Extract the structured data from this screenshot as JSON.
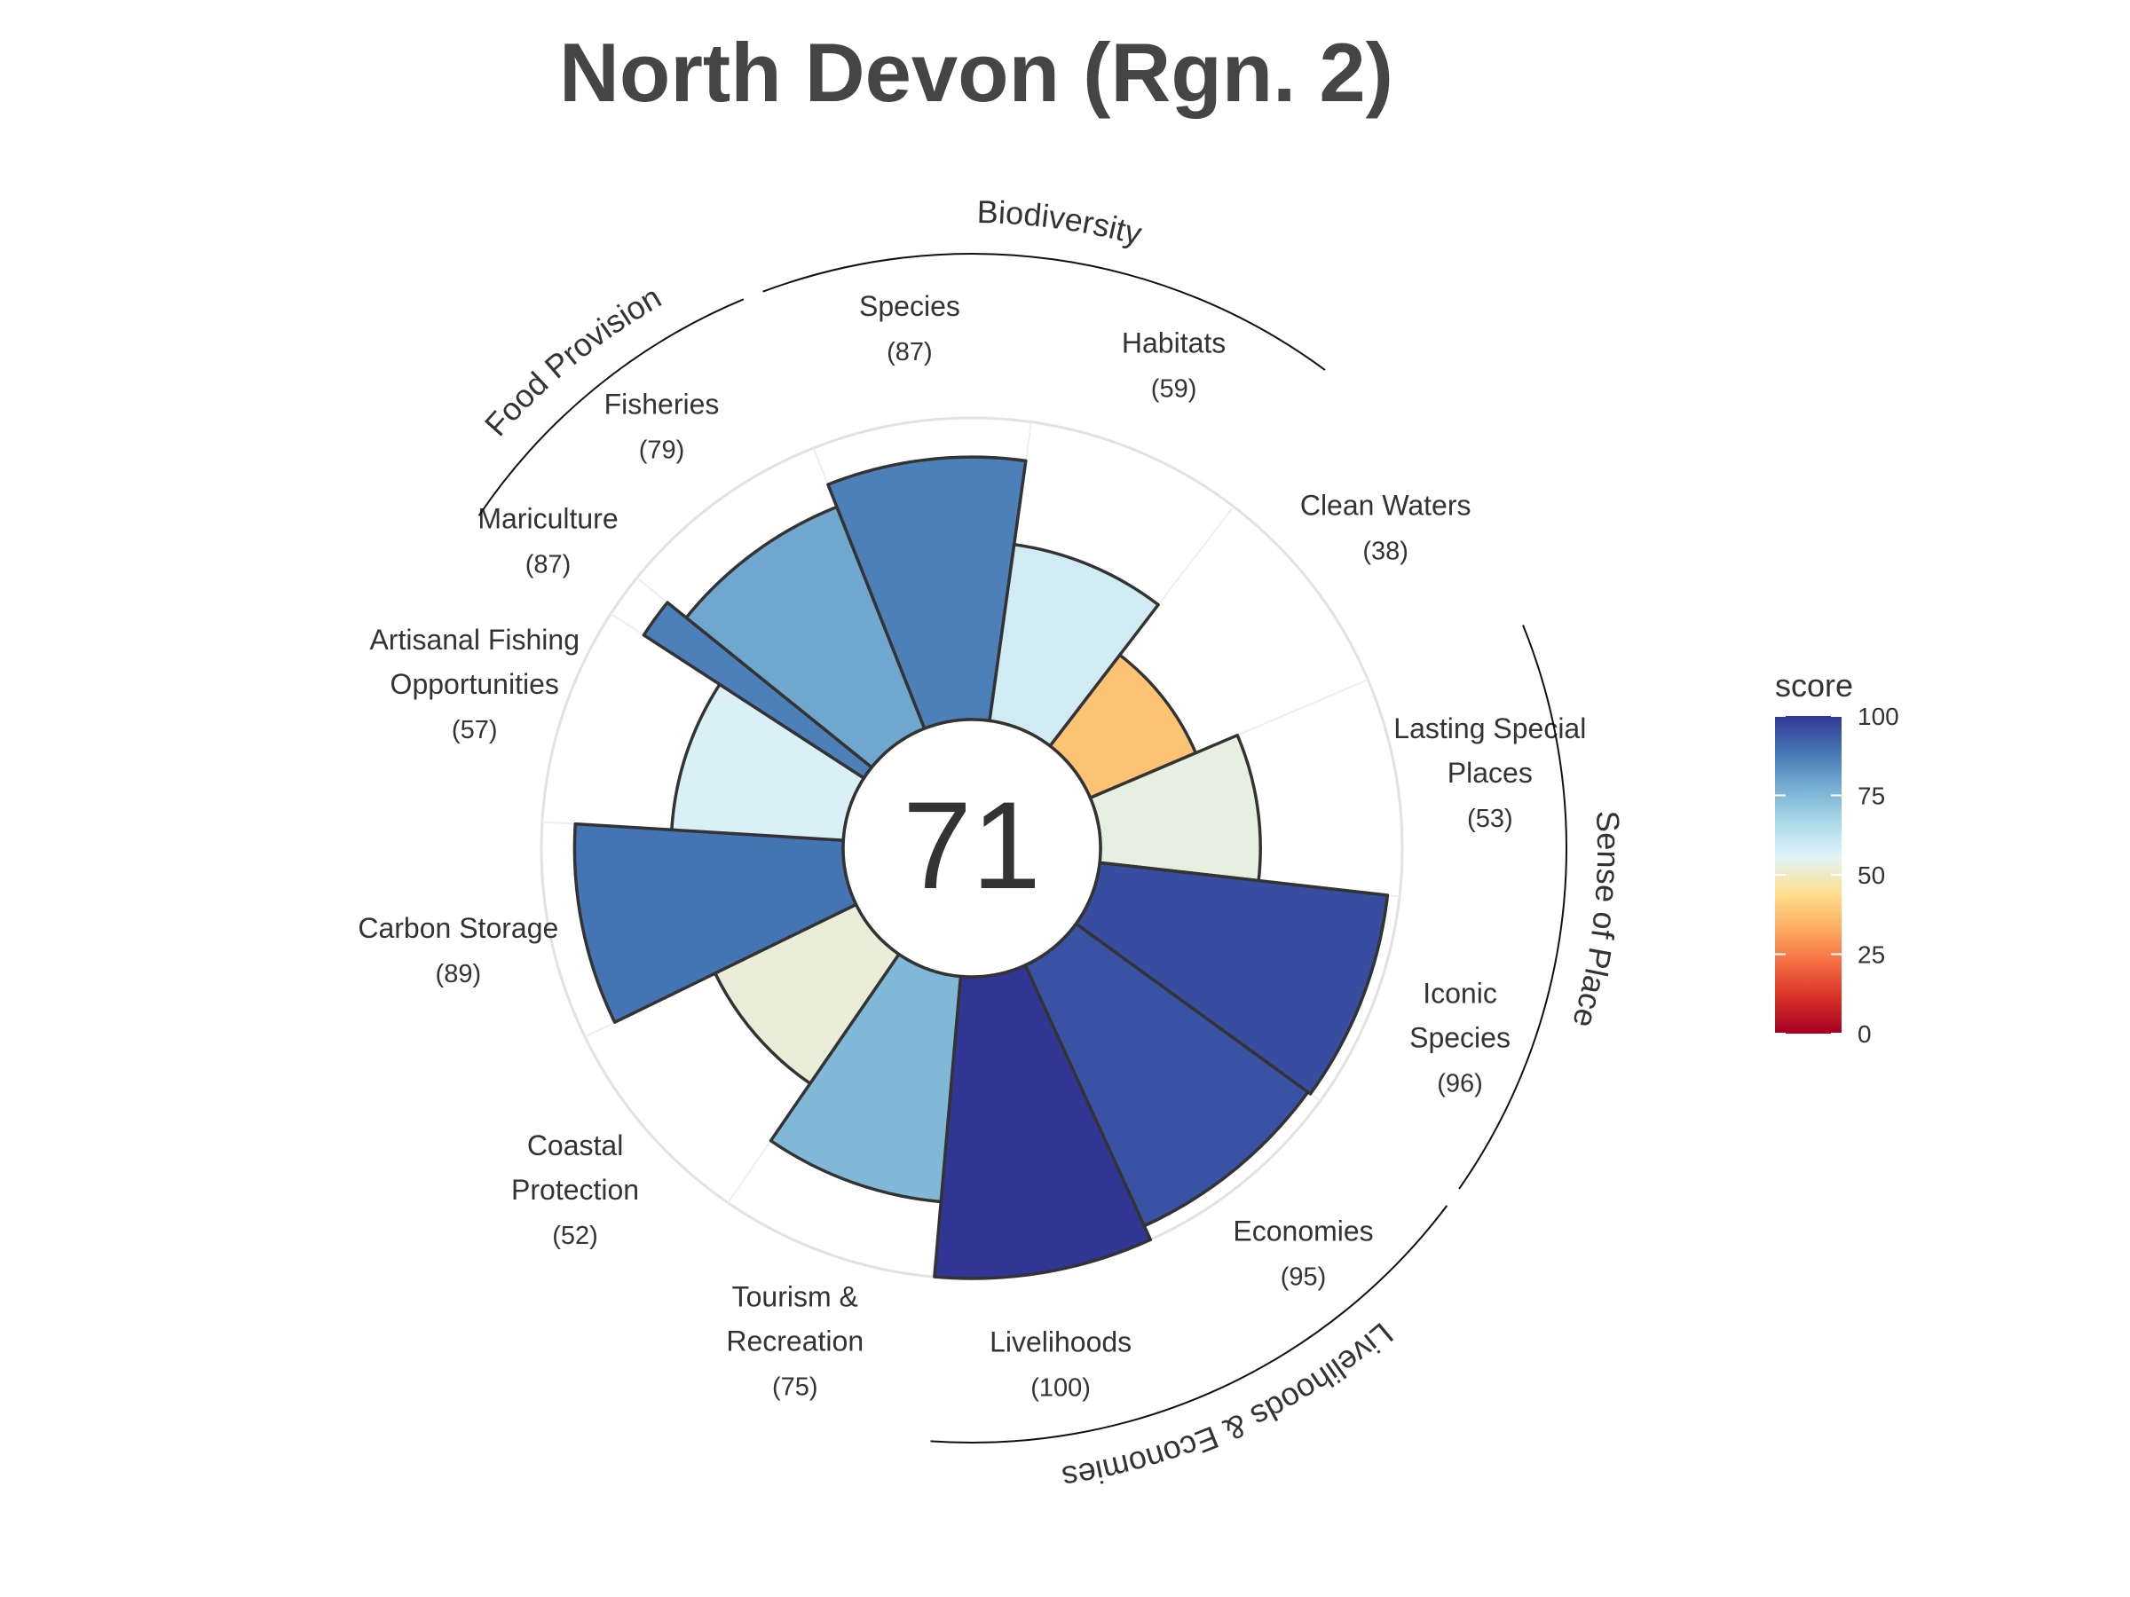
{
  "chart_data": {
    "type": "bar",
    "subtype": "flower (polar bar)",
    "title": "North Devon (Rgn. 2)",
    "overall_score": "71",
    "rlim": [
      0,
      100
    ],
    "grid": true,
    "categories": [
      "Carbon Storage",
      "Artisanal Fishing Opportunities",
      "Mariculture",
      "Fisheries",
      "Species",
      "Habitats",
      "Clean Waters",
      "Lasting Special Places",
      "Iconic Species",
      "Economies",
      "Livelihoods",
      "Tourism & Recreation",
      "Coastal Protection"
    ],
    "values": [
      89,
      57,
      87,
      79,
      87,
      59,
      38,
      53,
      96,
      95,
      100,
      75,
      52
    ],
    "goals": [
      {
        "label": [
          "Carbon Storage"
        ],
        "score_text": "(89)"
      },
      {
        "label": [
          "Artisanal Fishing",
          "Opportunities"
        ],
        "score_text": "(57)"
      },
      {
        "label": [
          "Mariculture"
        ],
        "score_text": "(87)"
      },
      {
        "label": [
          "Fisheries"
        ],
        "score_text": "(79)"
      },
      {
        "label": [
          "Species"
        ],
        "score_text": "(87)"
      },
      {
        "label": [
          "Habitats"
        ],
        "score_text": "(59)"
      },
      {
        "label": [
          "Clean Waters"
        ],
        "score_text": "(38)"
      },
      {
        "label": [
          "Lasting Special",
          "Places"
        ],
        "score_text": "(53)"
      },
      {
        "label": [
          "Iconic",
          "Species"
        ],
        "score_text": "(96)"
      },
      {
        "label": [
          "Economies"
        ],
        "score_text": "(95)"
      },
      {
        "label": [
          "Livelihoods"
        ],
        "score_text": "(100)"
      },
      {
        "label": [
          "Tourism &",
          "Recreation"
        ],
        "score_text": "(75)"
      },
      {
        "label": [
          "Coastal",
          "Protection"
        ],
        "score_text": "(52)"
      }
    ],
    "supra_groups": [
      {
        "name": "Food Provision",
        "goals": [
          "Mariculture",
          "Fisheries"
        ]
      },
      {
        "name": "Biodiversity",
        "goals": [
          "Species",
          "Habitats"
        ]
      },
      {
        "name": "Sense of Place",
        "goals": [
          "Iconic Species",
          "Lasting Special Places"
        ]
      },
      {
        "name": "Livelihoods & Economies",
        "goals": [
          "Livelihoods",
          "Economies"
        ]
      }
    ],
    "legend": {
      "title": "score",
      "placement": "right",
      "ticks": [
        "100",
        "75",
        "50",
        "25",
        "0"
      ],
      "tick_values": [
        100,
        75,
        50,
        25,
        0
      ]
    },
    "colorscale": [
      "#a50026",
      "#d73027",
      "#f46d43",
      "#fdae61",
      "#fee090",
      "#e0f3f8",
      "#abd9e9",
      "#74add1",
      "#4575b4",
      "#313695"
    ],
    "colors": {
      "outline": "#333333",
      "grid": "#e2e2e2",
      "title": "#454545",
      "label": "#333333"
    }
  }
}
